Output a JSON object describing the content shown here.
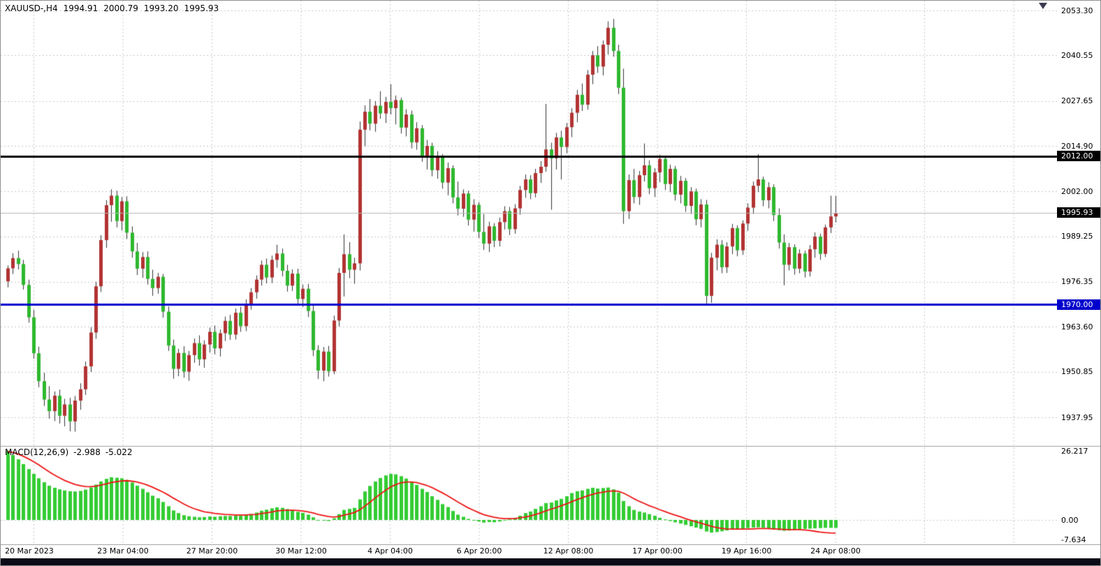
{
  "header": {
    "symbol_period": "XAUUSD-,H4",
    "open": "1994.91",
    "high": "2000.79",
    "low": "1993.20",
    "close": "1995.93"
  },
  "indicator_label": {
    "name": "MACD(12,26,9)",
    "main_value": "-2.988",
    "signal_value": "-5.022"
  },
  "chart_data": {
    "type": "candlestick",
    "title": "XAUUSD-,H4",
    "timeframe": "H4",
    "price_axis": {
      "ticks": [
        "2053.30",
        "2040.55",
        "2027.65",
        "2014.90",
        "2002.00",
        "1989.25",
        "1976.35",
        "1963.60",
        "1950.85",
        "1937.95"
      ]
    },
    "macd_axis": {
      "ticks": [
        "26.217",
        "0.00",
        "-7.634"
      ]
    },
    "time_axis": {
      "labels": [
        "20 Mar 2023",
        "23 Mar 04:00",
        "27 Mar 20:00",
        "30 Mar 12:00",
        "4 Apr 04:00",
        "6 Apr 20:00",
        "12 Apr 08:00",
        "17 Apr 00:00",
        "19 Apr 16:00",
        "24 Apr 08:00"
      ]
    },
    "hlines": [
      {
        "price": 2012.0,
        "label": "2012.00",
        "color": "#000000",
        "tag_color": "#000000",
        "width": 3
      },
      {
        "price": 1995.93,
        "label": "1995.93",
        "color": "#b8b8b8",
        "tag_color": "#000000",
        "width": 1
      },
      {
        "price": 1970.0,
        "label": "1970.00",
        "color": "#0000cd",
        "tag_color": "#0000cd",
        "width": 3
      }
    ],
    "colors": {
      "bg": "#ffffff",
      "grid": "#c9c9c9",
      "bull": "#b23232",
      "bear": "#2eb82e",
      "wick": "#333333",
      "macd_hist": "#33cc33",
      "macd_signal": "#ee1414",
      "separator": "#a0a0a0"
    },
    "candles": [
      [
        1976.5,
        1981.0,
        1974.8,
        1980.2
      ],
      [
        1980.2,
        1984.5,
        1978.6,
        1983.1
      ],
      [
        1983.1,
        1985.2,
        1979.9,
        1981.4
      ],
      [
        1981.4,
        1982.6,
        1974.2,
        1975.5
      ],
      [
        1975.5,
        1977.0,
        1964.8,
        1966.3
      ],
      [
        1966.3,
        1968.4,
        1954.6,
        1956.1
      ],
      [
        1956.1,
        1958.0,
        1946.5,
        1948.2
      ],
      [
        1948.2,
        1950.6,
        1941.2,
        1943.0
      ],
      [
        1943.0,
        1946.8,
        1937.6,
        1939.7
      ],
      [
        1939.7,
        1945.3,
        1936.9,
        1944.1
      ],
      [
        1944.1,
        1945.8,
        1936.2,
        1938.4
      ],
      [
        1938.4,
        1943.2,
        1935.4,
        1941.6
      ],
      [
        1941.6,
        1943.5,
        1934.0,
        1936.8
      ],
      [
        1936.8,
        1944.0,
        1933.9,
        1942.7
      ],
      [
        1942.7,
        1947.6,
        1940.1,
        1945.9
      ],
      [
        1945.9,
        1953.8,
        1944.3,
        1952.4
      ],
      [
        1952.4,
        1963.5,
        1950.8,
        1962.0
      ],
      [
        1962.0,
        1976.4,
        1960.2,
        1975.1
      ],
      [
        1975.1,
        1989.6,
        1973.5,
        1988.2
      ],
      [
        1988.2,
        1999.5,
        1986.0,
        1998.1
      ],
      [
        1998.1,
        2002.6,
        1993.4,
        2000.8
      ],
      [
        2000.8,
        2002.2,
        1991.8,
        1993.6
      ],
      [
        1993.6,
        2000.4,
        1990.9,
        1999.2
      ],
      [
        1999.2,
        2000.6,
        1988.5,
        1990.3
      ],
      [
        1990.3,
        1992.1,
        1983.2,
        1985.0
      ],
      [
        1985.0,
        1987.4,
        1978.3,
        1980.1
      ],
      [
        1980.1,
        1984.8,
        1977.5,
        1983.4
      ],
      [
        1983.4,
        1985.0,
        1975.6,
        1977.2
      ],
      [
        1977.2,
        1979.8,
        1972.4,
        1974.6
      ],
      [
        1974.6,
        1978.9,
        1973.0,
        1977.8
      ],
      [
        1977.8,
        1978.6,
        1966.2,
        1967.9
      ],
      [
        1967.9,
        1969.4,
        1956.8,
        1958.3
      ],
      [
        1958.3,
        1960.0,
        1948.9,
        1951.7
      ],
      [
        1951.7,
        1957.4,
        1949.6,
        1956.2
      ],
      [
        1956.2,
        1958.1,
        1949.2,
        1950.9
      ],
      [
        1950.9,
        1956.8,
        1948.3,
        1955.6
      ],
      [
        1955.6,
        1960.3,
        1953.4,
        1959.0
      ],
      [
        1959.0,
        1961.2,
        1952.6,
        1954.4
      ],
      [
        1954.4,
        1959.8,
        1952.0,
        1958.6
      ],
      [
        1958.6,
        1963.4,
        1956.3,
        1962.2
      ],
      [
        1962.2,
        1964.0,
        1955.8,
        1957.5
      ],
      [
        1957.5,
        1962.9,
        1955.2,
        1961.8
      ],
      [
        1961.8,
        1966.5,
        1959.6,
        1965.3
      ],
      [
        1965.3,
        1967.0,
        1959.9,
        1961.4
      ],
      [
        1961.4,
        1968.8,
        1960.0,
        1967.6
      ],
      [
        1967.6,
        1969.3,
        1962.2,
        1963.8
      ],
      [
        1963.8,
        1971.4,
        1962.4,
        1970.2
      ],
      [
        1970.2,
        1974.6,
        1968.5,
        1973.4
      ],
      [
        1973.4,
        1978.2,
        1971.6,
        1977.0
      ],
      [
        1977.0,
        1982.4,
        1975.3,
        1981.2
      ],
      [
        1981.2,
        1983.0,
        1975.9,
        1977.6
      ],
      [
        1977.6,
        1983.8,
        1976.0,
        1982.6
      ],
      [
        1982.6,
        1986.9,
        1980.4,
        1984.4
      ],
      [
        1984.4,
        1985.8,
        1977.9,
        1979.5
      ],
      [
        1979.5,
        1981.2,
        1973.6,
        1975.3
      ],
      [
        1975.3,
        1979.9,
        1973.8,
        1978.7
      ],
      [
        1978.7,
        1980.1,
        1969.8,
        1971.5
      ],
      [
        1971.5,
        1975.6,
        1969.2,
        1974.4
      ],
      [
        1974.4,
        1975.8,
        1966.4,
        1968.1
      ],
      [
        1968.1,
        1969.6,
        1955.3,
        1957.0
      ],
      [
        1957.0,
        1958.4,
        1948.8,
        1951.2
      ],
      [
        1951.2,
        1957.9,
        1948.2,
        1956.6
      ],
      [
        1956.6,
        1958.2,
        1949.5,
        1951.0
      ],
      [
        1951.0,
        1966.8,
        1950.2,
        1965.4
      ],
      [
        1965.4,
        1980.3,
        1963.7,
        1978.9
      ],
      [
        1978.9,
        1989.8,
        1972.2,
        1984.2
      ],
      [
        1984.2,
        1987.6,
        1977.4,
        1979.8
      ],
      [
        1979.8,
        1983.2,
        1975.8,
        1981.6
      ],
      [
        1981.6,
        2021.8,
        1979.6,
        2019.5
      ],
      [
        2019.5,
        2026.4,
        2014.8,
        2024.6
      ],
      [
        2024.6,
        2028.2,
        2019.3,
        2021.2
      ],
      [
        2021.2,
        2027.6,
        2018.9,
        2026.3
      ],
      [
        2026.3,
        2030.4,
        2022.6,
        2024.1
      ],
      [
        2024.1,
        2028.8,
        2021.4,
        2027.4
      ],
      [
        2027.4,
        2032.4,
        2023.8,
        2025.6
      ],
      [
        2025.6,
        2029.2,
        2021.0,
        2027.9
      ],
      [
        2027.9,
        2028.6,
        2018.4,
        2020.1
      ],
      [
        2020.1,
        2025.3,
        2017.6,
        2023.8
      ],
      [
        2023.8,
        2024.9,
        2014.2,
        2015.9
      ],
      [
        2015.9,
        2021.6,
        2013.8,
        2019.9
      ],
      [
        2019.9,
        2020.8,
        2010.4,
        2012.1
      ],
      [
        2012.1,
        2016.6,
        2008.2,
        2014.9
      ],
      [
        2014.9,
        2015.8,
        2006.3,
        2008.0
      ],
      [
        2008.0,
        2013.4,
        2005.6,
        2011.8
      ],
      [
        2011.8,
        2012.6,
        2002.8,
        2004.5
      ],
      [
        2004.5,
        2010.2,
        2000.9,
        2008.6
      ],
      [
        2008.6,
        2009.4,
        1998.6,
        2000.3
      ],
      [
        2000.3,
        2004.8,
        1995.2,
        1997.1
      ],
      [
        1997.1,
        2002.6,
        1994.8,
        2001.4
      ],
      [
        2001.4,
        2002.2,
        1992.3,
        1994.0
      ],
      [
        1994.0,
        1999.8,
        1990.6,
        1998.2
      ],
      [
        1998.2,
        1999.0,
        1988.8,
        1990.5
      ],
      [
        1990.5,
        1995.6,
        1985.4,
        1987.2
      ],
      [
        1987.2,
        1993.4,
        1984.8,
        1992.1
      ],
      [
        1992.1,
        1993.0,
        1986.2,
        1988.0
      ],
      [
        1988.0,
        1994.6,
        1986.4,
        1993.3
      ],
      [
        1993.3,
        1997.8,
        1991.2,
        1996.4
      ],
      [
        1996.4,
        1997.6,
        1989.6,
        1991.3
      ],
      [
        1991.3,
        1998.4,
        1990.0,
        1997.2
      ],
      [
        1997.2,
        2003.6,
        1995.4,
        2002.4
      ],
      [
        2002.4,
        2006.8,
        2000.2,
        2005.4
      ],
      [
        2005.4,
        2006.6,
        1999.8,
        2001.5
      ],
      [
        2001.5,
        2008.4,
        2000.3,
        2007.2
      ],
      [
        2007.2,
        2010.6,
        2004.4,
        2009.0
      ],
      [
        2009.0,
        2026.8,
        2007.6,
        2013.9
      ],
      [
        2013.9,
        2015.8,
        1996.8,
        2011.4
      ],
      [
        2011.4,
        2018.6,
        2008.2,
        2017.3
      ],
      [
        2017.3,
        2019.2,
        2005.4,
        2014.6
      ],
      [
        2014.6,
        2021.4,
        2012.8,
        2020.2
      ],
      [
        2020.2,
        2025.6,
        2017.4,
        2024.3
      ],
      [
        2024.3,
        2030.8,
        2021.6,
        2029.4
      ],
      [
        2029.4,
        2032.6,
        2024.8,
        2026.6
      ],
      [
        2026.6,
        2036.4,
        2025.2,
        2035.1
      ],
      [
        2035.1,
        2041.8,
        2032.4,
        2040.6
      ],
      [
        2040.6,
        2043.2,
        2035.6,
        2037.4
      ],
      [
        2037.4,
        2044.8,
        2034.9,
        2043.6
      ],
      [
        2043.6,
        2050.2,
        2040.8,
        2048.4
      ],
      [
        2048.4,
        2050.9,
        2040.2,
        2041.8
      ],
      [
        2041.8,
        2043.6,
        2029.6,
        2031.4
      ],
      [
        2031.4,
        2036.8,
        1992.8,
        1996.4
      ],
      [
        1996.4,
        2006.8,
        1994.2,
        2005.2
      ],
      [
        2005.2,
        2008.4,
        1998.6,
        2000.4
      ],
      [
        2000.4,
        2007.8,
        1998.2,
        2006.6
      ],
      [
        2006.6,
        2015.6,
        2004.8,
        2009.4
      ],
      [
        2009.4,
        2010.8,
        2001.2,
        2002.9
      ],
      [
        2002.9,
        2008.6,
        2000.4,
        2007.4
      ],
      [
        2007.4,
        2012.4,
        2004.6,
        2011.2
      ],
      [
        2011.2,
        2012.0,
        2002.4,
        2004.1
      ],
      [
        2004.1,
        2009.6,
        2001.8,
        2008.4
      ],
      [
        2008.4,
        2009.2,
        1999.4,
        2001.1
      ],
      [
        2001.1,
        2006.4,
        1998.6,
        2005.0
      ],
      [
        2005.0,
        2005.8,
        1996.2,
        1997.9
      ],
      [
        1997.9,
        2003.2,
        1995.6,
        2002.0
      ],
      [
        2002.0,
        2002.8,
        1992.4,
        1994.1
      ],
      [
        1994.1,
        1999.8,
        1991.8,
        1998.3
      ],
      [
        1998.3,
        1999.6,
        1969.8,
        1972.4
      ],
      [
        1972.4,
        1984.6,
        1970.4,
        1983.2
      ],
      [
        1983.2,
        1988.4,
        1979.6,
        1986.9
      ],
      [
        1986.9,
        1988.2,
        1978.8,
        1980.5
      ],
      [
        1980.5,
        1987.6,
        1978.9,
        1986.4
      ],
      [
        1986.4,
        1992.8,
        1984.2,
        1991.6
      ],
      [
        1991.6,
        1992.4,
        1983.6,
        1985.3
      ],
      [
        1985.3,
        1993.8,
        1984.0,
        1992.9
      ],
      [
        1992.9,
        1998.6,
        1990.8,
        1997.4
      ],
      [
        1997.4,
        2004.8,
        1995.6,
        2003.6
      ],
      [
        2003.6,
        2012.6,
        2001.8,
        2005.4
      ],
      [
        2005.4,
        2006.2,
        1997.8,
        1999.5
      ],
      [
        1999.5,
        2004.6,
        1997.2,
        2003.2
      ],
      [
        2003.2,
        2004.0,
        1993.6,
        1995.3
      ],
      [
        1995.3,
        1997.2,
        1985.8,
        1987.5
      ],
      [
        1987.5,
        1989.8,
        1975.4,
        1981.2
      ],
      [
        1981.2,
        1987.4,
        1979.6,
        1986.2
      ],
      [
        1986.2,
        1987.0,
        1978.4,
        1980.1
      ],
      [
        1980.1,
        1985.6,
        1978.8,
        1984.4
      ],
      [
        1984.4,
        1985.2,
        1977.6,
        1979.3
      ],
      [
        1979.3,
        1986.8,
        1977.9,
        1985.6
      ],
      [
        1985.6,
        1990.4,
        1983.2,
        1989.2
      ],
      [
        1989.2,
        1990.0,
        1982.6,
        1984.3
      ],
      [
        1984.3,
        1992.6,
        1983.4,
        1991.8
      ],
      [
        1991.8,
        2000.8,
        1990.2,
        1994.9
      ],
      [
        1994.91,
        2000.79,
        1993.2,
        1995.93
      ]
    ],
    "macd": {
      "histogram": [
        26.2,
        24.6,
        23.0,
        21.2,
        19.3,
        17.5,
        15.8,
        14.3,
        13.0,
        12.2,
        11.6,
        11.2,
        10.9,
        10.8,
        11.0,
        11.5,
        12.3,
        13.4,
        14.6,
        15.6,
        16.2,
        16.0,
        15.8,
        15.2,
        14.2,
        13.0,
        11.8,
        10.5,
        9.2,
        8.2,
        6.8,
        5.2,
        3.6,
        2.6,
        1.8,
        1.4,
        1.2,
        1.0,
        1.1,
        1.3,
        1.2,
        1.4,
        1.5,
        1.5,
        1.7,
        1.6,
        1.9,
        2.2,
        2.8,
        3.5,
        3.9,
        4.4,
        4.8,
        4.6,
        4.1,
        3.8,
        3.1,
        2.7,
        2.0,
        1.0,
        -0.2,
        0.0,
        -0.4,
        0.6,
        2.2,
        3.8,
        4.2,
        4.6,
        7.8,
        10.8,
        12.9,
        14.6,
        15.9,
        16.9,
        17.5,
        17.3,
        16.6,
        15.7,
        14.4,
        13.3,
        11.8,
        10.6,
        9.0,
        7.6,
        6.0,
        4.9,
        3.4,
        2.0,
        1.2,
        0.4,
        -0.2,
        -0.6,
        -1.0,
        -0.8,
        -0.9,
        -0.6,
        0.0,
        0.2,
        0.8,
        1.6,
        2.6,
        3.2,
        4.2,
        5.2,
        6.4,
        6.6,
        7.4,
        8.0,
        9.0,
        10.2,
        10.9,
        11.2,
        11.8,
        12.2,
        11.9,
        12.1,
        12.3,
        11.6,
        10.4,
        7.2,
        5.2,
        3.8,
        3.2,
        2.8,
        2.2,
        1.6,
        0.8,
        0.2,
        -0.4,
        -0.9,
        -1.4,
        -1.9,
        -2.4,
        -2.9,
        -3.4,
        -4.4,
        -4.8,
        -4.6,
        -4.3,
        -4.0,
        -3.7,
        -3.5,
        -3.3,
        -3.1,
        -2.9,
        -2.8,
        -3.0,
        -3.3,
        -3.6,
        -3.9,
        -4.1,
        -4.0,
        -3.8,
        -3.6,
        -3.4,
        -3.3,
        -3.2,
        -3.1,
        -3.0,
        -3.0,
        -2.988
      ],
      "signal": [
        25.9,
        25.6,
        25.0,
        24.2,
        23.2,
        22.1,
        20.9,
        19.6,
        18.3,
        17.1,
        16.0,
        15.0,
        14.2,
        13.5,
        13.0,
        12.7,
        12.6,
        12.8,
        13.2,
        13.7,
        14.2,
        14.5,
        14.8,
        14.9,
        14.7,
        14.4,
        13.9,
        13.2,
        12.4,
        11.5,
        10.6,
        9.5,
        8.3,
        7.2,
        6.1,
        5.1,
        4.3,
        3.7,
        3.1,
        2.8,
        2.5,
        2.3,
        2.1,
        2.0,
        1.9,
        1.9,
        1.9,
        2.0,
        2.1,
        2.4,
        2.7,
        3.0,
        3.4,
        3.6,
        3.7,
        3.7,
        3.6,
        3.4,
        3.1,
        2.7,
        2.1,
        1.7,
        1.3,
        1.1,
        1.3,
        1.8,
        2.3,
        2.8,
        3.8,
        5.2,
        6.7,
        8.3,
        9.8,
        11.2,
        12.5,
        13.4,
        14.1,
        14.4,
        14.4,
        14.2,
        13.7,
        13.1,
        12.3,
        11.3,
        10.3,
        9.2,
        8.0,
        6.8,
        5.7,
        4.6,
        3.7,
        2.8,
        2.0,
        1.5,
        1.0,
        0.7,
        0.5,
        0.5,
        0.5,
        0.8,
        1.1,
        1.5,
        2.1,
        2.7,
        3.4,
        4.1,
        4.7,
        5.4,
        6.1,
        6.9,
        7.7,
        8.4,
        9.1,
        9.7,
        10.2,
        10.5,
        10.9,
        11.0,
        10.9,
        10.2,
        9.2,
        8.1,
        7.1,
        6.3,
        5.4,
        4.7,
        3.9,
        3.2,
        2.5,
        1.8,
        1.2,
        0.5,
        -0.1,
        -0.7,
        -1.2,
        -1.8,
        -2.4,
        -2.9,
        -3.2,
        -3.4,
        -3.5,
        -3.5,
        -3.5,
        -3.5,
        -3.4,
        -3.3,
        -3.3,
        -3.3,
        -3.4,
        -3.5,
        -3.6,
        -3.7,
        -3.7,
        -3.7,
        -3.8,
        -4.0,
        -4.3,
        -4.6,
        -4.8,
        -4.95,
        -5.022
      ]
    }
  }
}
